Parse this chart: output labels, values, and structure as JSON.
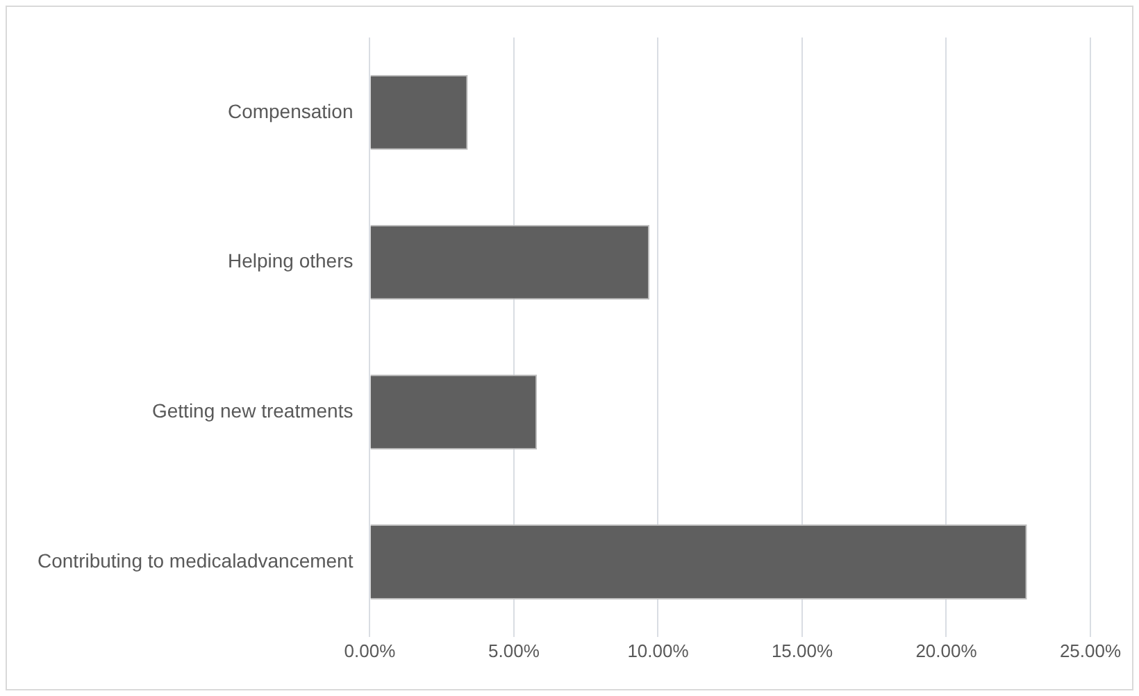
{
  "chart_data": {
    "type": "bar",
    "orientation": "horizontal",
    "categories": [
      "Compensation",
      "Helping others",
      "Getting new treatments",
      "Contributing to medicaladvancement"
    ],
    "values": [
      3.4,
      9.7,
      5.8,
      22.8
    ],
    "color": "#5f5f5f",
    "xlim": [
      0,
      25
    ],
    "xticks": [
      {
        "value": 0,
        "label": "0.00%"
      },
      {
        "value": 5,
        "label": "5.00%"
      },
      {
        "value": 10,
        "label": "10.00%"
      },
      {
        "value": 15,
        "label": "15.00%"
      },
      {
        "value": 20,
        "label": "20.00%"
      },
      {
        "value": 25,
        "label": "25.00%"
      }
    ],
    "grid": "x",
    "legend": false
  }
}
